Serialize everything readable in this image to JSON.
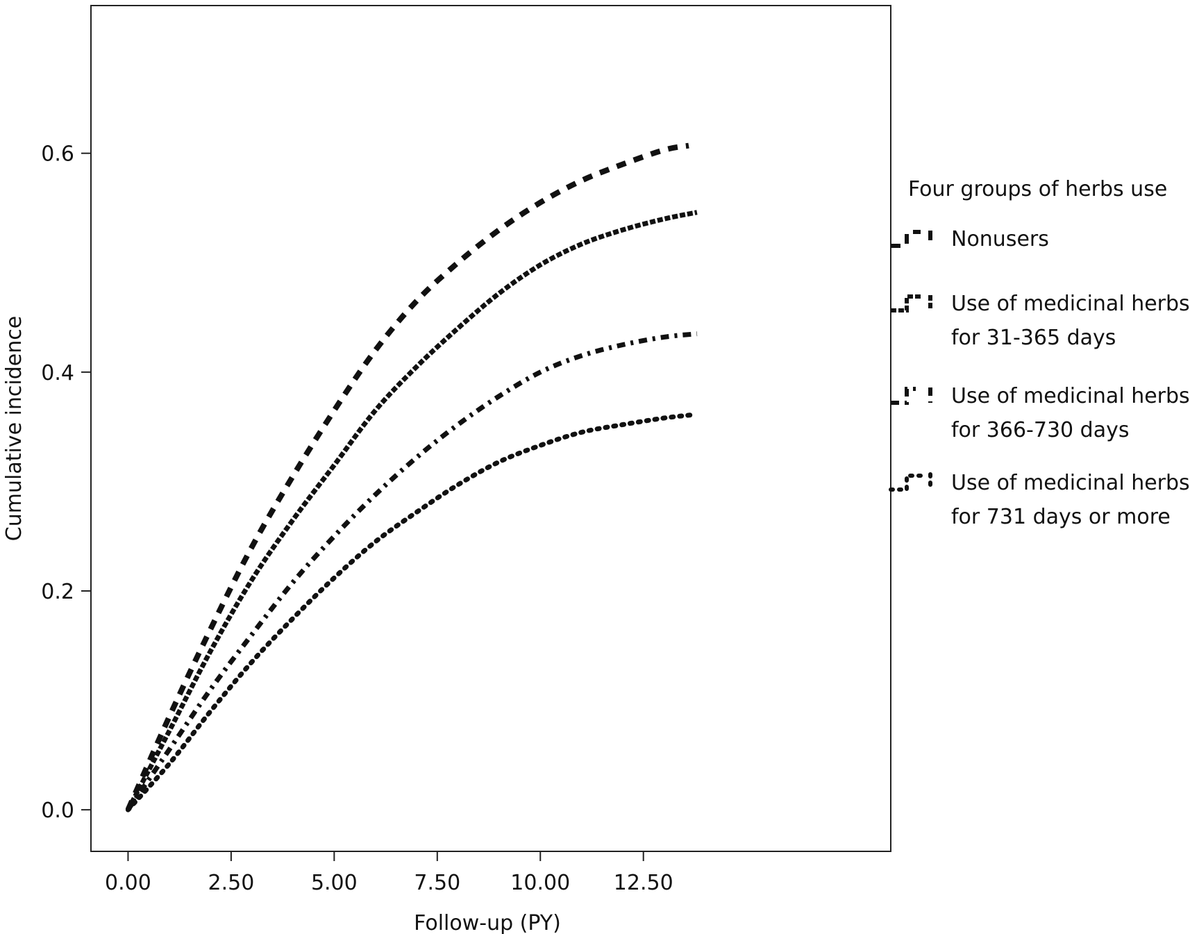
{
  "chart_data": {
    "type": "line",
    "title": "",
    "xlabel": "Follow-up (PY)",
    "ylabel": "Cumulative incidence",
    "xlim": [
      -0.9,
      18.5
    ],
    "ylim": [
      -0.038,
      0.735
    ],
    "x_ticks": [
      "0.00",
      "2.50",
      "5.00",
      "7.50",
      "10.00",
      "12.50"
    ],
    "x_tick_values": [
      0,
      2.5,
      5,
      7.5,
      10,
      12.5
    ],
    "y_ticks": [
      "0.0",
      "0.2",
      "0.4",
      "0.6"
    ],
    "y_tick_values": [
      0,
      0.2,
      0.4,
      0.6
    ],
    "grid": false,
    "legend": {
      "title": "Four groups of herbs use",
      "position": "right"
    },
    "series": [
      {
        "name": "Nonusers",
        "line_style": "dashed",
        "color": "#111111",
        "x": [
          0,
          1,
          2,
          3,
          4,
          5,
          6,
          7,
          8,
          9,
          10,
          11,
          12,
          13,
          13.6
        ],
        "y": [
          0,
          0.085,
          0.165,
          0.24,
          0.305,
          0.365,
          0.42,
          0.465,
          0.5,
          0.53,
          0.555,
          0.575,
          0.59,
          0.603,
          0.607
        ]
      },
      {
        "name": "Use of medicinal herbs for 31-365 days",
        "line_style": "long-dash",
        "color": "#111111",
        "x": [
          0,
          1,
          2,
          3,
          4,
          5,
          6,
          7,
          8,
          9,
          10,
          11,
          12,
          13,
          13.8
        ],
        "y": [
          0,
          0.072,
          0.145,
          0.21,
          0.265,
          0.315,
          0.365,
          0.405,
          0.44,
          0.472,
          0.498,
          0.517,
          0.53,
          0.54,
          0.546
        ]
      },
      {
        "name": "Use of medicinal herbs for 366-730 days",
        "line_style": "dash-dot",
        "color": "#111111",
        "x": [
          0,
          1,
          2,
          3,
          4,
          5,
          6,
          7,
          8,
          9,
          10,
          11,
          12,
          13,
          13.8
        ],
        "y": [
          0,
          0.055,
          0.11,
          0.16,
          0.208,
          0.25,
          0.288,
          0.322,
          0.352,
          0.378,
          0.4,
          0.415,
          0.425,
          0.432,
          0.435
        ]
      },
      {
        "name": "Use of medicinal herbs for 731 days or more",
        "line_style": "dotted",
        "color": "#111111",
        "x": [
          0,
          1,
          2,
          3,
          4,
          5,
          6,
          7,
          8,
          9,
          10,
          11,
          12,
          13,
          13.7
        ],
        "y": [
          0,
          0.042,
          0.09,
          0.135,
          0.175,
          0.212,
          0.245,
          0.272,
          0.297,
          0.318,
          0.333,
          0.345,
          0.352,
          0.358,
          0.361
        ]
      }
    ]
  },
  "legend_items": [
    {
      "lines": [
        "Nonusers"
      ]
    },
    {
      "lines": [
        "Use of medicinal herbs",
        "for 31-365 days"
      ]
    },
    {
      "lines": [
        "Use of medicinal herbs",
        "for 366-730 days"
      ]
    },
    {
      "lines": [
        "Use of medicinal herbs",
        "for 731 days or more"
      ]
    }
  ]
}
